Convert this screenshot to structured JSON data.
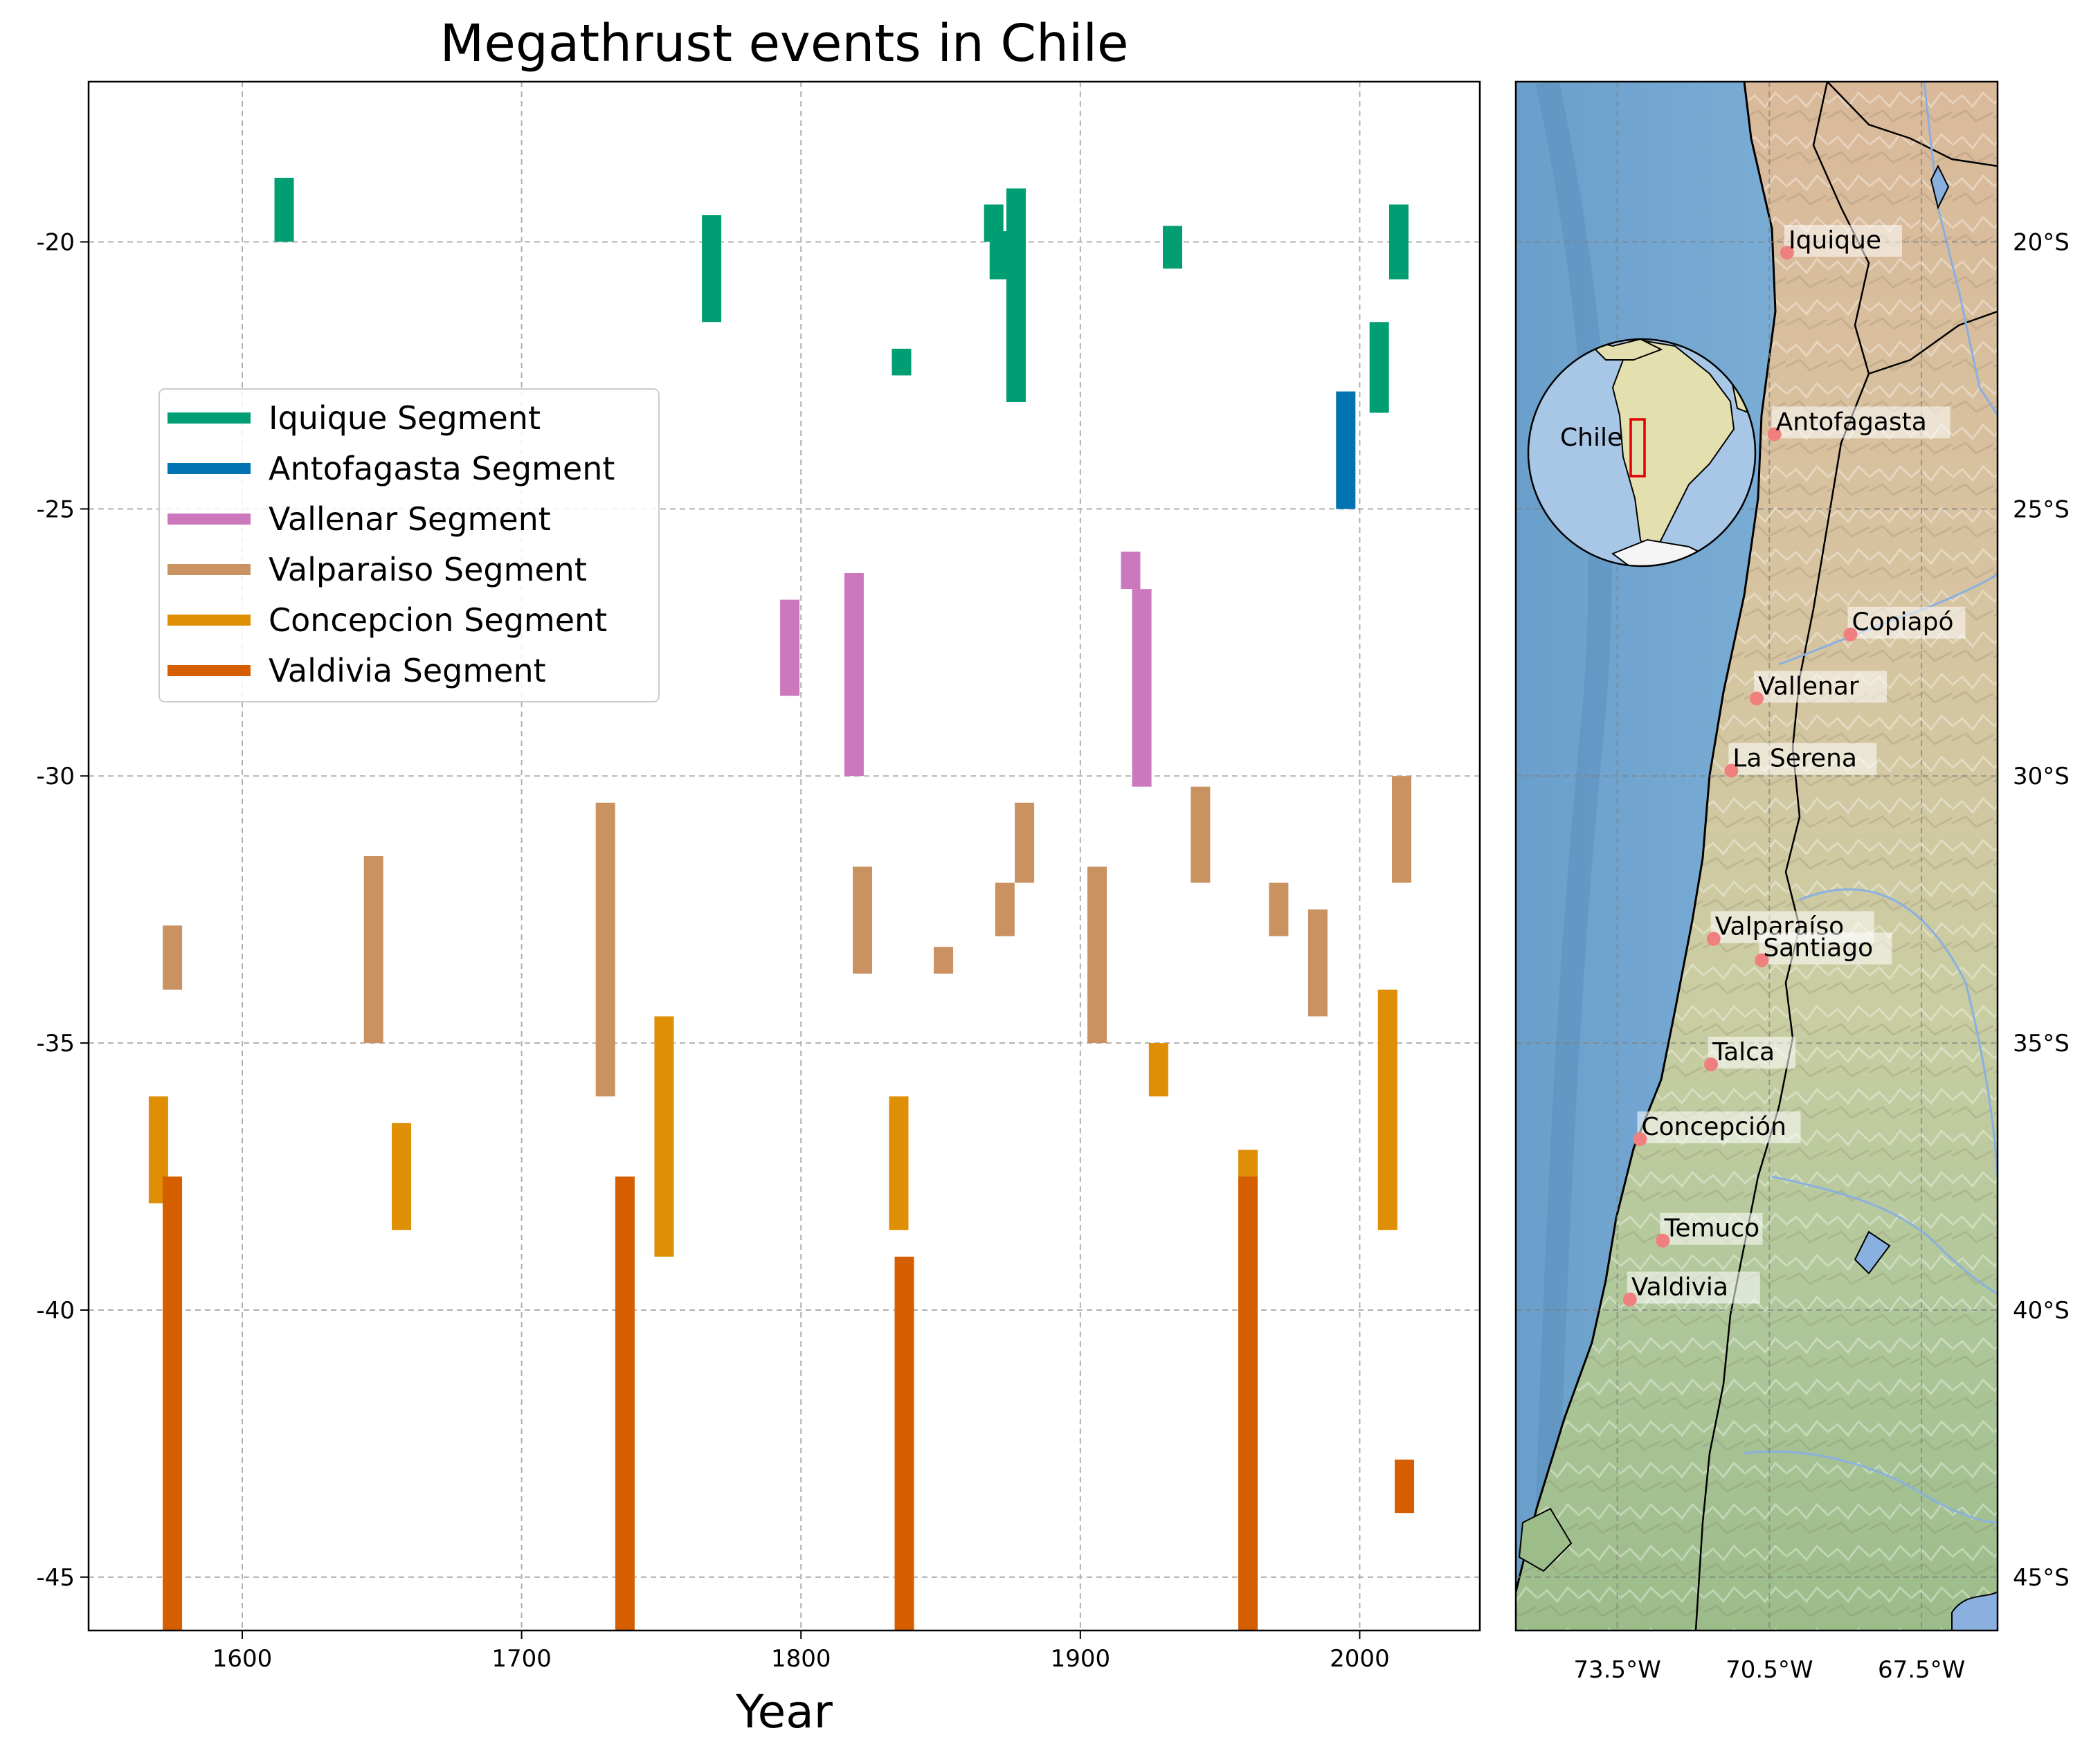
{
  "chart_data": [
    {
      "type": "bar",
      "orientation": "vertical-range",
      "title": "Megathrust events in Chile",
      "xlabel": "Year",
      "ylabel": "",
      "xlim": [
        1545,
        2043
      ],
      "ylim": [
        -46,
        -17
      ],
      "xticks": [
        1600,
        1700,
        1800,
        1900,
        2000
      ],
      "yticks": [
        -20,
        -25,
        -30,
        -35,
        -40,
        -45
      ],
      "xtick_labels": [
        "1600",
        "1700",
        "1800",
        "1900",
        "2000"
      ],
      "ytick_labels": [
        "-20",
        "-25",
        "-30",
        "-35",
        "-40",
        "-45"
      ],
      "grid": true,
      "legend": "upper-left",
      "series": [
        {
          "name": "Iquique Segment",
          "color": "#029e73",
          "events": [
            {
              "year": 1615,
              "lat_top": -18.8,
              "lat_bottom": -20.0
            },
            {
              "year": 1768,
              "lat_top": -19.5,
              "lat_bottom": -21.5
            },
            {
              "year": 1836,
              "lat_top": -22.0,
              "lat_bottom": -22.5
            },
            {
              "year": 1869,
              "lat_top": -19.3,
              "lat_bottom": -20.0
            },
            {
              "year": 1871,
              "lat_top": -19.8,
              "lat_bottom": -20.7
            },
            {
              "year": 1877,
              "lat_top": -19.0,
              "lat_bottom": -23.0
            },
            {
              "year": 1933,
              "lat_top": -19.7,
              "lat_bottom": -20.5
            },
            {
              "year": 2007,
              "lat_top": -21.5,
              "lat_bottom": -23.2
            },
            {
              "year": 2014,
              "lat_top": -19.3,
              "lat_bottom": -20.7
            }
          ]
        },
        {
          "name": "Antofagasta Segment",
          "color": "#0173b2",
          "events": [
            {
              "year": 1995,
              "lat_top": -22.8,
              "lat_bottom": -25.0
            }
          ]
        },
        {
          "name": "Vallenar Segment",
          "color": "#cc78bc",
          "events": [
            {
              "year": 1796,
              "lat_top": -26.7,
              "lat_bottom": -28.5
            },
            {
              "year": 1819,
              "lat_top": -26.2,
              "lat_bottom": -30.0
            },
            {
              "year": 1918,
              "lat_top": -25.8,
              "lat_bottom": -26.5
            },
            {
              "year": 1922,
              "lat_top": -26.5,
              "lat_bottom": -30.2
            }
          ]
        },
        {
          "name": "Valparaiso Segment",
          "color": "#ca9161",
          "events": [
            {
              "year": 1575,
              "lat_top": -32.8,
              "lat_bottom": -34.0
            },
            {
              "year": 1647,
              "lat_top": -31.5,
              "lat_bottom": -35.0
            },
            {
              "year": 1730,
              "lat_top": -30.5,
              "lat_bottom": -36.0
            },
            {
              "year": 1822,
              "lat_top": -31.7,
              "lat_bottom": -33.7
            },
            {
              "year": 1851,
              "lat_top": -33.2,
              "lat_bottom": -33.7
            },
            {
              "year": 1873,
              "lat_top": -32.0,
              "lat_bottom": -33.0
            },
            {
              "year": 1880,
              "lat_top": -30.5,
              "lat_bottom": -32.0
            },
            {
              "year": 1906,
              "lat_top": -31.7,
              "lat_bottom": -35.0
            },
            {
              "year": 1943,
              "lat_top": -30.2,
              "lat_bottom": -32.0
            },
            {
              "year": 1971,
              "lat_top": -32.0,
              "lat_bottom": -33.0
            },
            {
              "year": 1985,
              "lat_top": -32.5,
              "lat_bottom": -34.5
            },
            {
              "year": 2015,
              "lat_top": -30.0,
              "lat_bottom": -32.0
            }
          ]
        },
        {
          "name": "Concepcion Segment",
          "color": "#de8f05",
          "events": [
            {
              "year": 1570,
              "lat_top": -36.0,
              "lat_bottom": -38.0
            },
            {
              "year": 1657,
              "lat_top": -36.5,
              "lat_bottom": -38.5
            },
            {
              "year": 1751,
              "lat_top": -34.5,
              "lat_bottom": -39.0
            },
            {
              "year": 1835,
              "lat_top": -36.0,
              "lat_bottom": -38.5
            },
            {
              "year": 1928,
              "lat_top": -35.0,
              "lat_bottom": -36.0
            },
            {
              "year": 1960,
              "lat_top": -37.0,
              "lat_bottom": -37.5
            },
            {
              "year": 2010,
              "lat_top": -34.0,
              "lat_bottom": -38.5
            }
          ]
        },
        {
          "name": "Valdivia Segment",
          "color": "#d55e00",
          "events": [
            {
              "year": 1575,
              "lat_top": -37.5,
              "lat_bottom": -46.0
            },
            {
              "year": 1737,
              "lat_top": -37.5,
              "lat_bottom": -46.0
            },
            {
              "year": 1837,
              "lat_top": -39.0,
              "lat_bottom": -46.0
            },
            {
              "year": 1960,
              "lat_top": -37.5,
              "lat_bottom": -46.0
            },
            {
              "year": 2016,
              "lat_top": -42.8,
              "lat_bottom": -43.8
            }
          ]
        }
      ]
    },
    {
      "type": "map",
      "region": "Chile",
      "lon_range": [
        -75.5,
        -66
      ],
      "lat_range": [
        -46,
        -17
      ],
      "xtick_labels": [
        "73.5°W",
        "70.5°W",
        "67.5°W"
      ],
      "xticks": [
        -73.5,
        -70.5,
        -67.5
      ],
      "ytick_labels": [
        "20°S",
        "25°S",
        "30°S",
        "35°S",
        "40°S",
        "45°S"
      ],
      "yticks": [
        -20,
        -25,
        -30,
        -35,
        -40,
        -45
      ],
      "inset_label": "Chile",
      "city_marker_color": "#f08080",
      "cities": [
        {
          "name": "Iquique",
          "lon": -70.15,
          "lat": -20.2
        },
        {
          "name": "Antofagasta",
          "lon": -70.4,
          "lat": -23.6
        },
        {
          "name": "Copiapó",
          "lon": -68.9,
          "lat": -27.35
        },
        {
          "name": "Vallenar",
          "lon": -70.75,
          "lat": -28.55
        },
        {
          "name": "La Serena",
          "lon": -71.25,
          "lat": -29.9
        },
        {
          "name": "Valparaíso",
          "lon": -71.6,
          "lat": -33.05
        },
        {
          "name": "Santiago",
          "lon": -70.65,
          "lat": -33.45
        },
        {
          "name": "Talca",
          "lon": -71.65,
          "lat": -35.4
        },
        {
          "name": "Concepción",
          "lon": -73.05,
          "lat": -36.8
        },
        {
          "name": "Temuco",
          "lon": -72.6,
          "lat": -38.7
        },
        {
          "name": "Valdivia",
          "lon": -73.25,
          "lat": -39.8
        }
      ]
    }
  ]
}
